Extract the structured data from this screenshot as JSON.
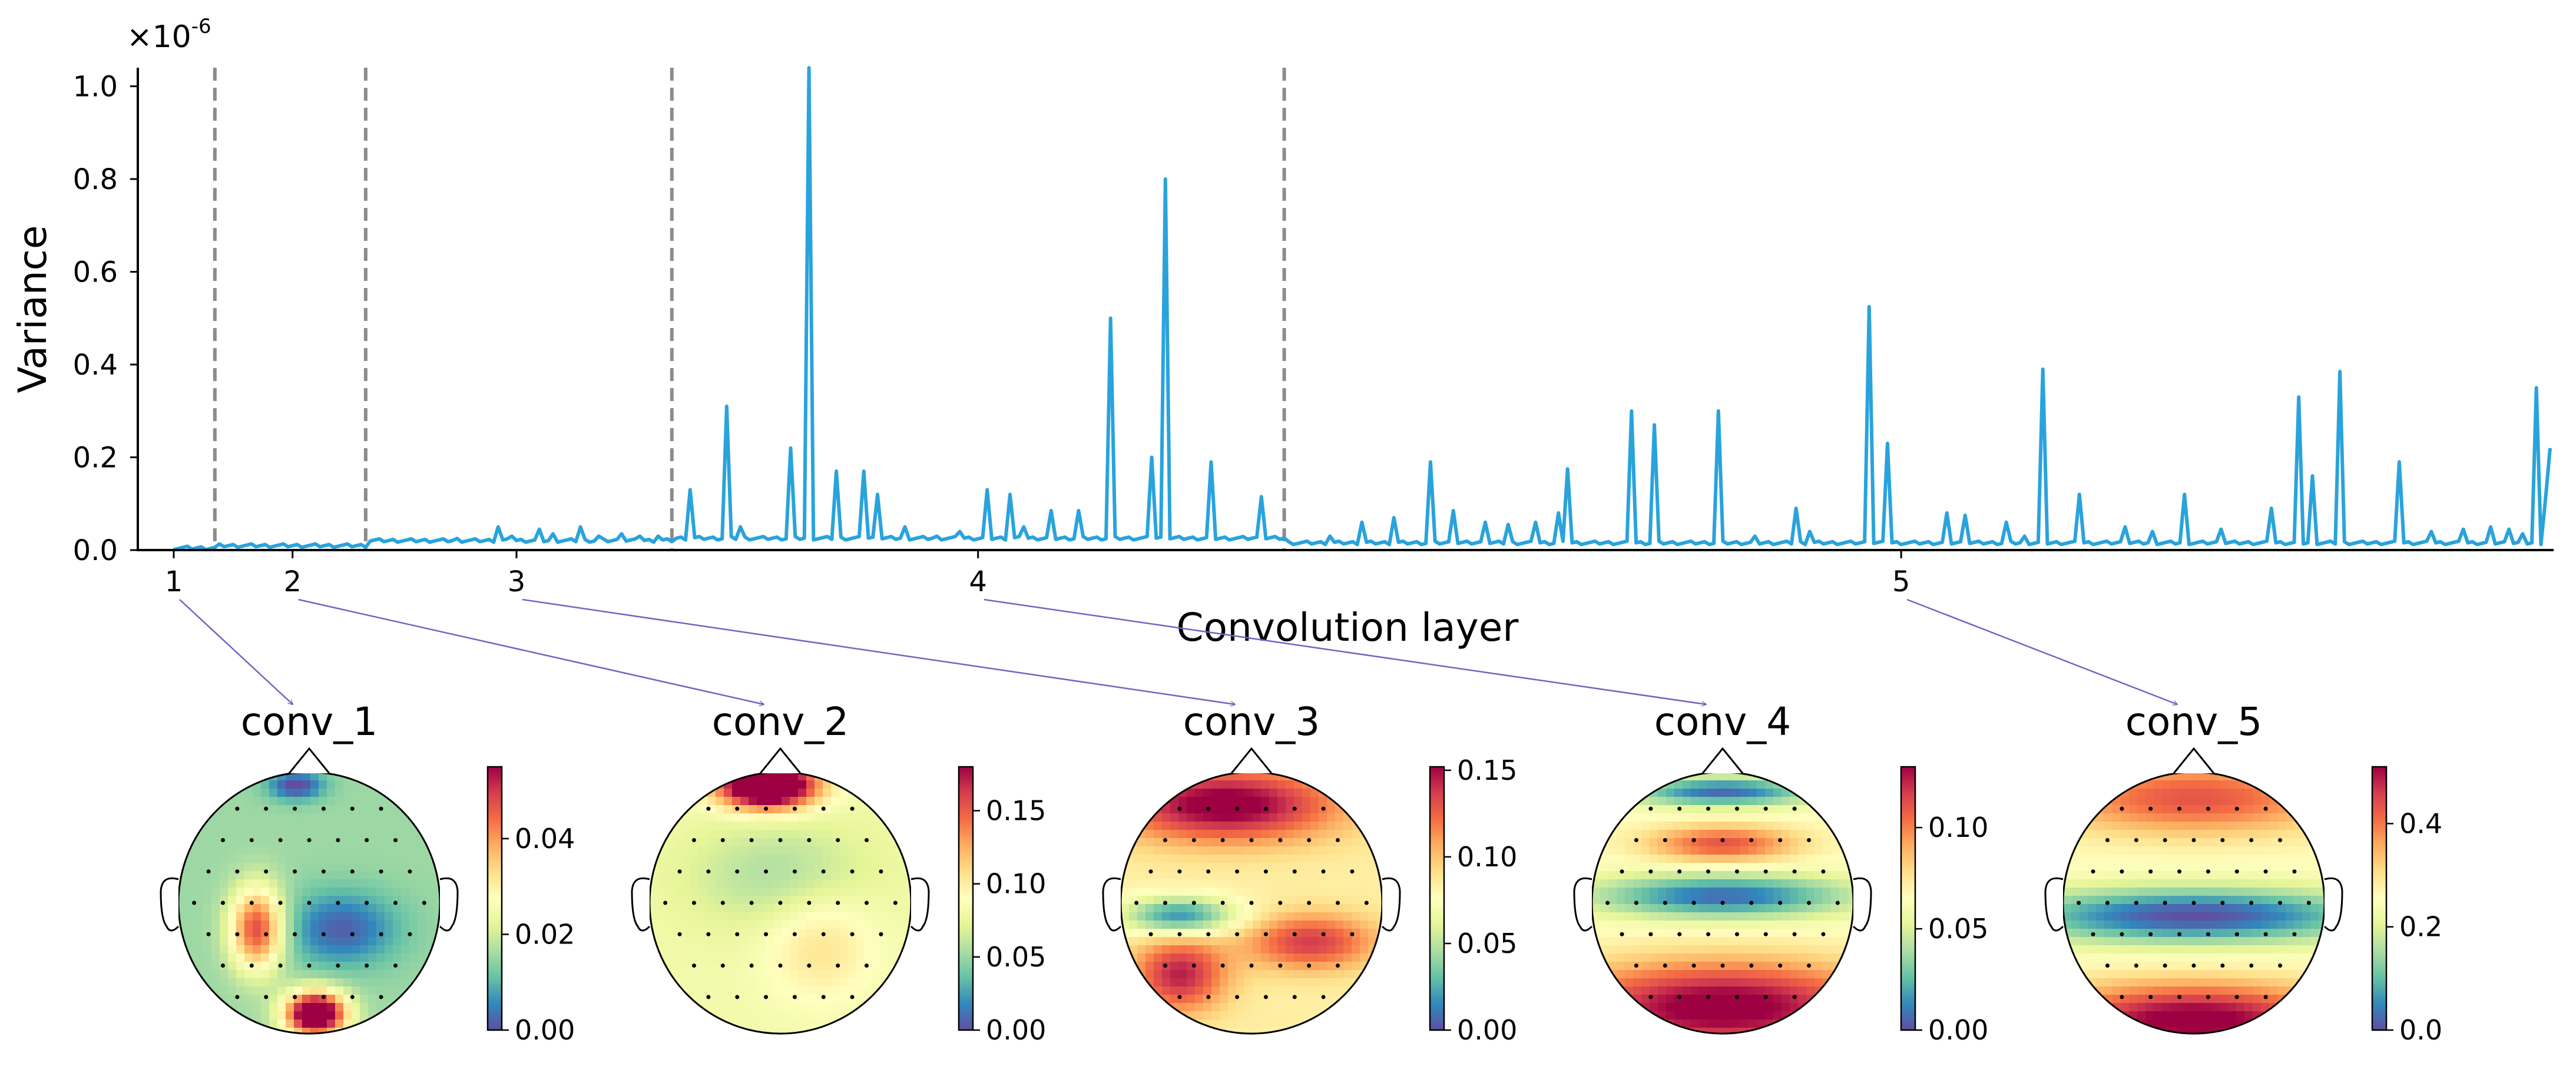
{
  "chart_data": [
    {
      "type": "line",
      "ylabel": "Variance",
      "xlabel": "Convolution layer",
      "y_multiplier": "×10",
      "y_exponent": "-6",
      "ylim": [
        0,
        1.04
      ],
      "y_ticks": [
        "0.0",
        "0.2",
        "0.4",
        "0.6",
        "0.8",
        "1.0"
      ],
      "x_range": [
        0,
        520
      ],
      "layer_ticks": [
        {
          "label": "1",
          "x": 0
        },
        {
          "label": "2",
          "x": 26
        },
        {
          "label": "3",
          "x": 75
        },
        {
          "label": "4",
          "x": 176
        },
        {
          "label": "5",
          "x": 378
        }
      ],
      "boundaries": [
        9,
        42,
        109,
        243
      ],
      "series": [
        {
          "name": "Variance",
          "color": "#29a3dc",
          "baselines": [
            {
              "from": 0,
              "to": 9,
              "level": 0.001
            },
            {
              "from": 9,
              "to": 42,
              "level": 0.006
            },
            {
              "from": 42,
              "to": 109,
              "level": 0.017
            },
            {
              "from": 109,
              "to": 243,
              "level": 0.022
            },
            {
              "from": 243,
              "to": 520,
              "level": 0.012
            }
          ],
          "peaks": [
            [
              62,
              0.025
            ],
            [
              71,
              0.05
            ],
            [
              74,
              0.03
            ],
            [
              80,
              0.045
            ],
            [
              83,
              0.035
            ],
            [
              89,
              0.05
            ],
            [
              93,
              0.03
            ],
            [
              98,
              0.035
            ],
            [
              102,
              0.03
            ],
            [
              106,
              0.03
            ],
            [
              113,
              0.13
            ],
            [
              121,
              0.31
            ],
            [
              124,
              0.05
            ],
            [
              135,
              0.22
            ],
            [
              139,
              1.04
            ],
            [
              145,
              0.17
            ],
            [
              151,
              0.17
            ],
            [
              154,
              0.12
            ],
            [
              160,
              0.05
            ],
            [
              167,
              0.03
            ],
            [
              172,
              0.04
            ],
            [
              178,
              0.13
            ],
            [
              183,
              0.12
            ],
            [
              186,
              0.05
            ],
            [
              192,
              0.085
            ],
            [
              198,
              0.085
            ],
            [
              205,
              0.5
            ],
            [
              214,
              0.2
            ],
            [
              217,
              0.8
            ],
            [
              227,
              0.19
            ],
            [
              238,
              0.115
            ],
            [
              253,
              0.03
            ],
            [
              260,
              0.06
            ],
            [
              267,
              0.07
            ],
            [
              275,
              0.19
            ],
            [
              280,
              0.085
            ],
            [
              287,
              0.06
            ],
            [
              292,
              0.055
            ],
            [
              298,
              0.06
            ],
            [
              303,
              0.08
            ],
            [
              305,
              0.175
            ],
            [
              319,
              0.3
            ],
            [
              324,
              0.27
            ],
            [
              338,
              0.3
            ],
            [
              346,
              0.03
            ],
            [
              355,
              0.09
            ],
            [
              358,
              0.04
            ],
            [
              371,
              0.525
            ],
            [
              375,
              0.23
            ],
            [
              388,
              0.08
            ],
            [
              392,
              0.075
            ],
            [
              401,
              0.06
            ],
            [
              405,
              0.03
            ],
            [
              409,
              0.39
            ],
            [
              417,
              0.12
            ],
            [
              427,
              0.05
            ],
            [
              433,
              0.04
            ],
            [
              440,
              0.12
            ],
            [
              448,
              0.045
            ],
            [
              459,
              0.09
            ],
            [
              465,
              0.33
            ],
            [
              468,
              0.16
            ],
            [
              474,
              0.385
            ],
            [
              487,
              0.19
            ],
            [
              494,
              0.04
            ],
            [
              501,
              0.045
            ],
            [
              507,
              0.05
            ],
            [
              511,
              0.045
            ],
            [
              514,
              0.035
            ],
            [
              517,
              0.35
            ],
            [
              519,
              0.11
            ],
            [
              520,
              0.22
            ]
          ]
        }
      ]
    }
  ],
  "topomaps": [
    {
      "title": "conv_1",
      "cbar_ticks": [
        "0.00",
        "0.02",
        "0.04"
      ],
      "cbar_max": 0.055,
      "layer_index": 0
    },
    {
      "title": "conv_2",
      "cbar_ticks": [
        "0.00",
        "0.05",
        "0.10",
        "0.15"
      ],
      "cbar_max": 0.18,
      "layer_index": 1
    },
    {
      "title": "conv_3",
      "cbar_ticks": [
        "0.00",
        "0.05",
        "0.10",
        "0.15"
      ],
      "cbar_max": 0.152,
      "layer_index": 2
    },
    {
      "title": "conv_4",
      "cbar_ticks": [
        "0.00",
        "0.05",
        "0.10"
      ],
      "cbar_max": 0.13,
      "layer_index": 3
    },
    {
      "title": "conv_5",
      "cbar_ticks": [
        "0.0",
        "0.2",
        "0.4"
      ],
      "cbar_max": 0.51,
      "layer_index": 4
    }
  ],
  "colors": {
    "line": "#29a3dc",
    "boundary": "#8c8c8c",
    "arrow": "#7b5fc0",
    "colormap": [
      "#5e4fa2",
      "#3288bd",
      "#66c2a5",
      "#abdda4",
      "#e6f598",
      "#ffffbf",
      "#fee08b",
      "#fdae61",
      "#f46d43",
      "#d53e4f",
      "#9e0142"
    ]
  }
}
